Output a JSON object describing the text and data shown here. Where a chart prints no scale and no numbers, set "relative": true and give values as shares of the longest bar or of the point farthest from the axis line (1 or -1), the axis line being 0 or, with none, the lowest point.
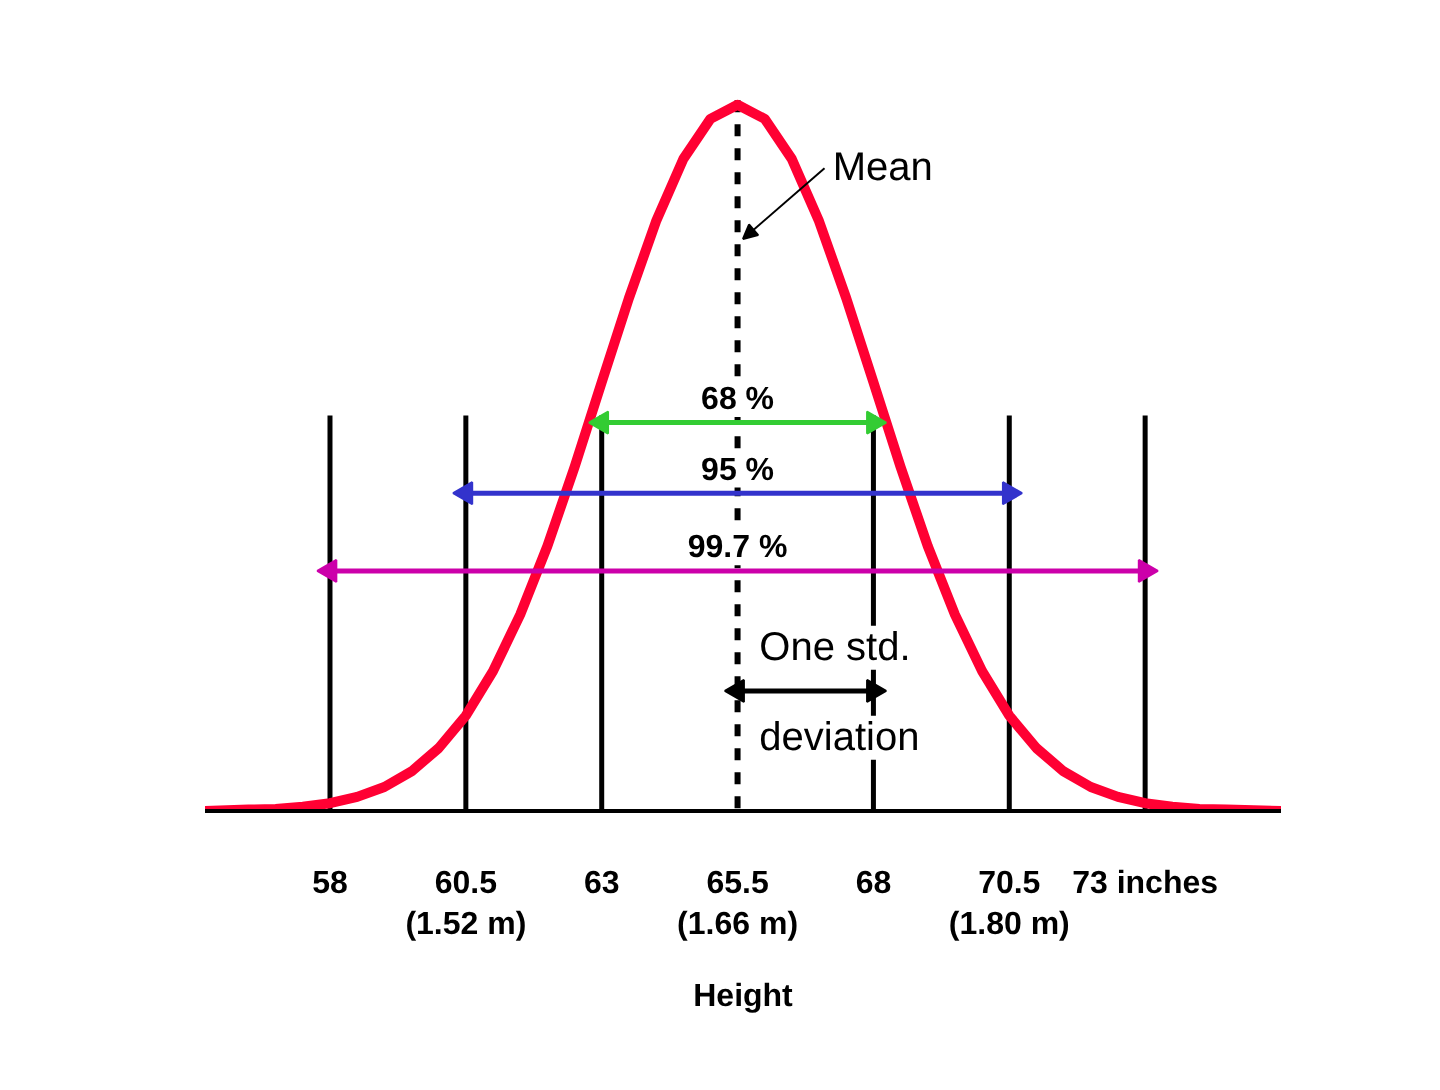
{
  "chart_data": {
    "type": "line",
    "relative": true,
    "xlabel": "Height",
    "x": [
      55.7,
      56.5,
      57,
      57.5,
      58,
      58.5,
      59,
      59.5,
      60,
      60.5,
      61,
      61.5,
      62,
      62.5,
      63,
      63.5,
      64,
      64.5,
      65,
      65.5,
      66,
      66.5,
      67,
      67.5,
      68,
      68.5,
      69,
      69.5,
      70,
      70.5,
      71,
      71.5,
      72,
      72.5,
      73,
      73.5,
      74,
      74.5,
      75.5
    ],
    "series": [
      {
        "color": "#ff0033",
        "values": [
          0.0,
          0.002,
          0.003,
          0.006,
          0.011,
          0.02,
          0.034,
          0.056,
          0.089,
          0.135,
          0.198,
          0.278,
          0.375,
          0.487,
          0.607,
          0.726,
          0.835,
          0.923,
          0.98,
          1,
          0.98,
          0.923,
          0.835,
          0.726,
          0.607,
          0.487,
          0.375,
          0.278,
          0.198,
          0.135,
          0.089,
          0.056,
          0.034,
          0.02,
          0.011,
          0.006,
          0.003,
          0.002,
          0.0
        ]
      },
      {
        "name": "68 %",
        "color": "#33cc33",
        "x": [
          63,
          68
        ],
        "values": [
          0.55,
          0.55
        ],
        "marker": "triangle"
      },
      {
        "name": "95 %",
        "color": "#3333cc",
        "x": [
          60.5,
          70.5
        ],
        "values": [
          0.45,
          0.45
        ],
        "marker": "triangle"
      },
      {
        "name": "99.7 %",
        "color": "#cc00aa",
        "x": [
          58,
          73
        ],
        "values": [
          0.34,
          0.34
        ],
        "marker": "triangle"
      },
      {
        "name": "One std. deviation",
        "color": "#000000",
        "x": [
          65.5,
          68
        ],
        "values": [
          0.17,
          0.17
        ],
        "marker": "triangle"
      }
    ],
    "xlim": [
      55.7,
      75.5
    ],
    "xticks": [
      58,
      {
        "value": 60.5,
        "label": "60.5\n(1.52 m)"
      },
      63,
      {
        "value": 65.5,
        "label": "65.5\n(1.66 m)"
      },
      68,
      {
        "value": 70.5,
        "label": "70.5\n(1.80 m)"
      },
      {
        "value": 73,
        "label": "73 inches"
      }
    ],
    "ref_lines": [
      {
        "axis": "x",
        "value": 58,
        "color": "#000000"
      },
      {
        "axis": "x",
        "value": 60.5,
        "color": "#000000"
      },
      {
        "axis": "x",
        "value": 63,
        "color": "#000000"
      },
      {
        "axis": "x",
        "value": 65.5,
        "label": "Mean",
        "color": "#000000",
        "line_style": "dashed"
      },
      {
        "axis": "x",
        "value": 68,
        "color": "#000000"
      },
      {
        "axis": "x",
        "value": 70.5,
        "color": "#000000"
      },
      {
        "axis": "x",
        "value": 73,
        "color": "#000000"
      }
    ],
    "grid": false,
    "marker": "none",
    "line_style": "solid"
  }
}
